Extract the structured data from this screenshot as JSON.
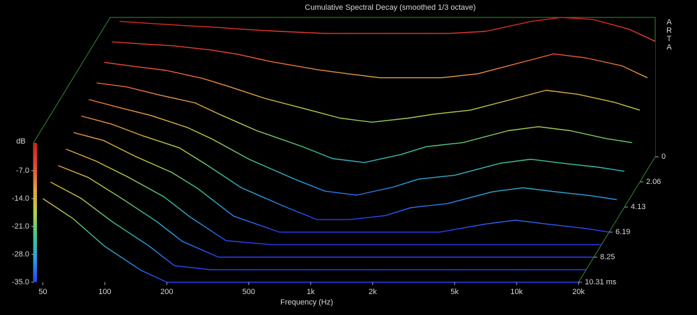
{
  "chart_data": {
    "type": "waterfall",
    "title": "Cumulative Spectral Decay (smoothed 1/3 octave)",
    "x_label": "Frequency (Hz)",
    "brand": [
      "A",
      "R",
      "T",
      "A"
    ],
    "x": [
      50,
      70,
      100,
      150,
      200,
      300,
      500,
      700,
      1000,
      1500,
      2000,
      3000,
      5000,
      7000,
      10000,
      15000,
      20000
    ],
    "xlim": [
      45,
      20000
    ],
    "log_x": true,
    "xticks": [
      50,
      100,
      200,
      500,
      {
        "value": 1000,
        "label": "1k"
      },
      {
        "value": 2000,
        "label": "2k"
      },
      {
        "value": 5000,
        "label": "5k"
      },
      {
        "value": 10000,
        "label": "10k"
      },
      {
        "value": 20000,
        "label": "20k"
      }
    ],
    "zlim": [
      0,
      10.31
    ],
    "zticks": [
      0,
      2.06,
      4.13,
      6.19,
      8.25,
      {
        "value": 10.31,
        "label": "10.31 ms"
      }
    ],
    "clim": [
      -35,
      0
    ],
    "colorbar_label": "dB",
    "cticks": [
      {
        "value": -7,
        "label": "-7.0"
      },
      {
        "value": -14,
        "label": "-14.0"
      },
      {
        "value": -21,
        "label": "-21.0"
      },
      {
        "value": -28,
        "label": "-28.0"
      },
      {
        "value": -35,
        "label": "-35.0"
      }
    ],
    "colorscale": [
      "#2a3cff",
      "#2aa0e8",
      "#40c890",
      "#b8d040",
      "#e8a040",
      "#e84a30",
      "#d42020"
    ],
    "frame_color": "#3a8a3a",
    "slices": [
      {
        "time": 0,
        "values": [
          -1,
          -1.5,
          -2,
          -2.5,
          -3,
          -3.5,
          -4,
          -4,
          -4,
          -4,
          -4,
          -3.5,
          -1,
          0,
          -0.5,
          -3,
          -6
        ]
      },
      {
        "time": 1.03,
        "values": [
          -3,
          -3.5,
          -4,
          -5,
          -6,
          -8,
          -10,
          -11,
          -12,
          -12,
          -12,
          -11,
          -8,
          -6,
          -7,
          -9,
          -12
        ]
      },
      {
        "time": 2.06,
        "values": [
          -5,
          -6,
          -7,
          -9,
          -11,
          -14,
          -17,
          -19,
          -20,
          -19,
          -18,
          -17,
          -14,
          -12,
          -13,
          -15,
          -17
        ]
      },
      {
        "time": 3.09,
        "values": [
          -7,
          -8,
          -10,
          -12,
          -15,
          -19,
          -23,
          -26,
          -27,
          -25,
          -23,
          -22,
          -19,
          -18,
          -19,
          -21,
          -22
        ]
      },
      {
        "time": 4.13,
        "values": [
          -8,
          -10,
          -12,
          -15,
          -18,
          -23,
          -28,
          -31,
          -32,
          -30,
          -28,
          -27,
          -24,
          -23,
          -24,
          -25,
          -26
        ]
      },
      {
        "time": 5.16,
        "values": [
          -9,
          -11,
          -14,
          -17,
          -21,
          -27,
          -32,
          -35,
          -35,
          -34,
          -32,
          -31,
          -28,
          -27,
          -28,
          -29,
          -30
        ]
      },
      {
        "time": 6.19,
        "values": [
          -10,
          -12,
          -16,
          -20,
          -24,
          -31,
          -35,
          -35,
          -35,
          -35,
          -35,
          -35,
          -33,
          -32,
          -33,
          -34,
          -35
        ]
      },
      {
        "time": 7.22,
        "values": [
          -11,
          -14,
          -18,
          -23,
          -28,
          -34,
          -35,
          -35,
          -35,
          -35,
          -35,
          -35,
          -35,
          -35,
          -35,
          -35,
          -35
        ]
      },
      {
        "time": 8.25,
        "values": [
          -12,
          -15,
          -20,
          -26,
          -31,
          -35,
          -35,
          -35,
          -35,
          -35,
          -35,
          -35,
          -35,
          -35,
          -35,
          -35,
          -35
        ]
      },
      {
        "time": 9.28,
        "values": [
          -13,
          -17,
          -23,
          -29,
          -34,
          -35,
          -35,
          -35,
          -35,
          -35,
          -35,
          -35,
          -35,
          -35,
          -35,
          -35,
          -35
        ]
      },
      {
        "time": 10.31,
        "values": [
          -14,
          -19,
          -26,
          -32,
          -35,
          -35,
          -35,
          -35,
          -35,
          -35,
          -35,
          -35,
          -35,
          -35,
          -35,
          -35,
          -35
        ]
      }
    ]
  }
}
